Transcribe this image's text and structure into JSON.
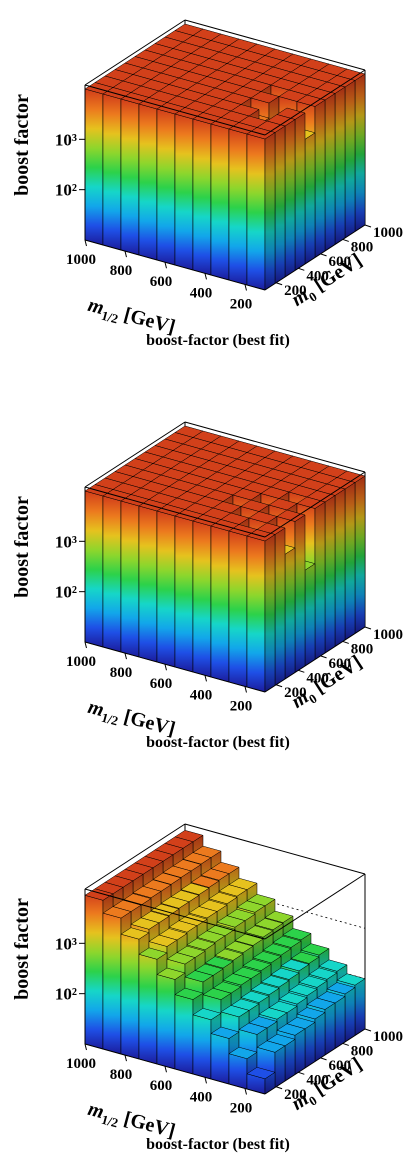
{
  "chart_data": [
    {
      "type": "lego",
      "title": "boost-factor (best fit)",
      "zlabel": "boost factor",
      "xlabel": {
        "symbol": "m",
        "subscript": "1/2",
        "unit": "[GeV]"
      },
      "ylabel": {
        "symbol": "m",
        "subscript": "0",
        "unit": "[GeV]"
      },
      "xlim": [
        100,
        1000
      ],
      "ylim": [
        100,
        1000
      ],
      "zlim": [
        10,
        12000
      ],
      "zlog": true,
      "grid": true,
      "xticks": [
        200,
        400,
        600,
        800,
        1000
      ],
      "yticks": [
        200,
        400,
        600,
        800,
        1000
      ],
      "zticks": [
        {
          "value": 100,
          "label": "10²"
        },
        {
          "value": 1000,
          "label": "10³"
        }
      ],
      "palette": [
        "#1c1c9c",
        "#1e4fe6",
        "#12a6ea",
        "#16d6c8",
        "#2cd24a",
        "#8ed62c",
        "#e6c21e",
        "#ec7a1e",
        "#d2401a"
      ],
      "values": [
        [
          10000,
          10000,
          10000,
          10000,
          10000,
          10000,
          10000,
          10000,
          10000,
          10000
        ],
        [
          10000,
          10000,
          10000,
          10000,
          10000,
          10000,
          10000,
          10000,
          10000,
          10000
        ],
        [
          10000,
          300,
          10000,
          10000,
          10000,
          10000,
          10000,
          10000,
          10000,
          10000
        ],
        [
          10000,
          2000,
          5000,
          10000,
          10000,
          10000,
          10000,
          10000,
          10000,
          10000
        ],
        [
          3000,
          800,
          10000,
          10000,
          10000,
          10000,
          10000,
          10000,
          10000,
          10000
        ],
        [
          10000,
          10000,
          6000,
          10000,
          10000,
          10000,
          10000,
          10000,
          10000,
          10000
        ],
        [
          10000,
          10000,
          10000,
          10000,
          10000,
          10000,
          10000,
          10000,
          10000,
          10000
        ],
        [
          10000,
          10000,
          10000,
          10000,
          10000,
          10000,
          10000,
          10000,
          10000,
          10000
        ],
        [
          10000,
          10000,
          10000,
          10000,
          10000,
          10000,
          10000,
          10000,
          10000,
          10000
        ],
        [
          10000,
          10000,
          10000,
          10000,
          10000,
          10000,
          10000,
          10000,
          10000,
          10000
        ]
      ]
    },
    {
      "type": "lego",
      "title": "boost-factor (best fit)",
      "zlabel": "boost factor",
      "xlabel": {
        "symbol": "m",
        "subscript": "1/2",
        "unit": "[GeV]"
      },
      "ylabel": {
        "symbol": "m",
        "subscript": "0",
        "unit": "[GeV]"
      },
      "xlim": [
        100,
        1000
      ],
      "ylim": [
        100,
        1000
      ],
      "zlim": [
        10,
        12000
      ],
      "zlog": true,
      "grid": true,
      "xticks": [
        200,
        400,
        600,
        800,
        1000
      ],
      "yticks": [
        200,
        400,
        600,
        800,
        1000
      ],
      "zticks": [
        {
          "value": 100,
          "label": "10²"
        },
        {
          "value": 1000,
          "label": "10³"
        }
      ],
      "palette": [
        "#1c1c9c",
        "#1e4fe6",
        "#12a6ea",
        "#16d6c8",
        "#2cd24a",
        "#8ed62c",
        "#e6c21e",
        "#ec7a1e",
        "#d2401a"
      ],
      "values": [
        [
          10000,
          10000,
          10000,
          10000,
          10000,
          10000,
          10000,
          10000,
          10000,
          10000
        ],
        [
          10000,
          200,
          10000,
          10000,
          10000,
          10000,
          10000,
          10000,
          10000,
          10000
        ],
        [
          3000,
          10000,
          1500,
          10000,
          10000,
          10000,
          10000,
          10000,
          10000,
          10000
        ],
        [
          10000,
          600,
          10000,
          4000,
          10000,
          10000,
          10000,
          10000,
          10000,
          10000
        ],
        [
          800,
          10000,
          2500,
          10000,
          10000,
          10000,
          10000,
          10000,
          10000,
          10000
        ],
        [
          10000,
          5000,
          10000,
          10000,
          10000,
          10000,
          10000,
          10000,
          10000,
          10000
        ],
        [
          10000,
          10000,
          10000,
          10000,
          10000,
          10000,
          10000,
          10000,
          10000,
          10000
        ],
        [
          10000,
          10000,
          10000,
          10000,
          10000,
          10000,
          10000,
          10000,
          10000,
          10000
        ],
        [
          10000,
          10000,
          10000,
          10000,
          10000,
          10000,
          10000,
          10000,
          10000,
          10000
        ],
        [
          10000,
          10000,
          10000,
          10000,
          10000,
          10000,
          10000,
          10000,
          10000,
          10000
        ]
      ]
    },
    {
      "type": "lego",
      "title": "boost-factor (best fit)",
      "zlabel": "boost factor",
      "xlabel": {
        "symbol": "m",
        "subscript": "1/2",
        "unit": "[GeV]"
      },
      "ylabel": {
        "symbol": "m",
        "subscript": "0",
        "unit": "[GeV]"
      },
      "xlim": [
        100,
        1000
      ],
      "ylim": [
        100,
        1000
      ],
      "zlim": [
        10,
        12000
      ],
      "zlog": true,
      "grid": true,
      "xticks": [
        200,
        400,
        600,
        800,
        1000
      ],
      "yticks": [
        200,
        400,
        600,
        800,
        1000
      ],
      "zticks": [
        {
          "value": 100,
          "label": "10²"
        },
        {
          "value": 1000,
          "label": "10³"
        }
      ],
      "palette": [
        "#1c1c9c",
        "#1e4fe6",
        "#12a6ea",
        "#16d6c8",
        "#2cd24a",
        "#8ed62c",
        "#e6c21e",
        "#ec7a1e",
        "#d2401a"
      ],
      "values": [
        [
          20,
          40,
          80,
          150,
          300,
          600,
          1200,
          2400,
          5000,
          9000
        ],
        [
          50,
          90,
          160,
          280,
          500,
          900,
          1600,
          2800,
          5000,
          9000
        ],
        [
          50,
          90,
          160,
          280,
          500,
          900,
          1600,
          2800,
          5000,
          9000
        ],
        [
          60,
          100,
          170,
          300,
          520,
          950,
          1700,
          2900,
          5200,
          9000
        ],
        [
          60,
          100,
          180,
          300,
          550,
          1000,
          1700,
          3000,
          5200,
          9000
        ],
        [
          70,
          110,
          190,
          320,
          580,
          1000,
          1800,
          3000,
          5300,
          9000
        ],
        [
          80,
          120,
          200,
          340,
          600,
          1100,
          1800,
          3100,
          5400,
          9000
        ],
        [
          80,
          130,
          220,
          360,
          650,
          1100,
          1900,
          3200,
          5400,
          9000
        ],
        [
          90,
          140,
          230,
          380,
          680,
          1200,
          2000,
          3300,
          5500,
          9000
        ],
        [
          100,
          150,
          250,
          400,
          700,
          1200,
          2000,
          3300,
          5500,
          9000
        ]
      ]
    }
  ]
}
